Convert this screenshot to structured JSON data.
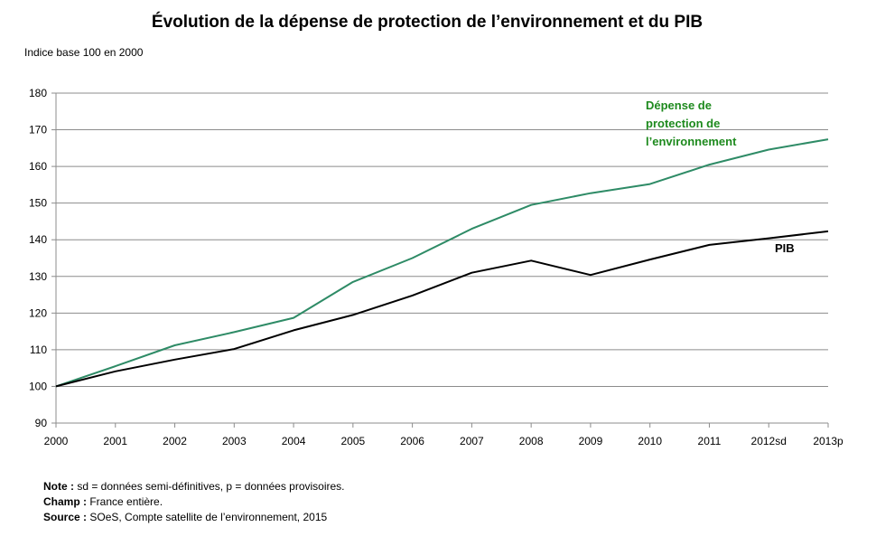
{
  "chart_data": {
    "type": "line",
    "title": "Évolution de la dépense de protection de l’environnement et du PIB",
    "ylabel": "Indice base 100 en 2000",
    "xlabel": "",
    "categories": [
      "2000",
      "2001",
      "2002",
      "2003",
      "2004",
      "2005",
      "2006",
      "2007",
      "2008",
      "2009",
      "2010",
      "2011",
      "2012sd",
      "2013p"
    ],
    "ylim": [
      90,
      180
    ],
    "yticks": [
      90,
      100,
      110,
      120,
      130,
      140,
      150,
      160,
      170,
      180
    ],
    "grid": true,
    "series": [
      {
        "name": "Dépense de protection de l’environnement",
        "label_lines": [
          "Dépense de",
          "protection de",
          "l’environnement"
        ],
        "color": "#2e8b66",
        "label_color": "#1e8a1e",
        "values": [
          100,
          105.5,
          111.2,
          114.8,
          118.7,
          128.5,
          135.0,
          143.0,
          149.5,
          152.7,
          155.2,
          160.5,
          164.6,
          167.4
        ]
      },
      {
        "name": "PIB",
        "label_lines": [
          "PIB"
        ],
        "color": "#000000",
        "label_color": "#000000",
        "values": [
          100,
          104.1,
          107.3,
          110.2,
          115.3,
          119.5,
          124.8,
          131.0,
          134.3,
          130.4,
          134.6,
          138.6,
          140.4,
          142.3
        ]
      }
    ]
  },
  "notes": {
    "note_label": "Note :",
    "note_text": " sd = données semi-définitives, p = données provisoires.",
    "champ_label": "Champ :",
    "champ_text": " France entière.",
    "source_label": "Source :",
    "source_text": " SOeS, Compte satellite de l’environnement, 2015"
  }
}
